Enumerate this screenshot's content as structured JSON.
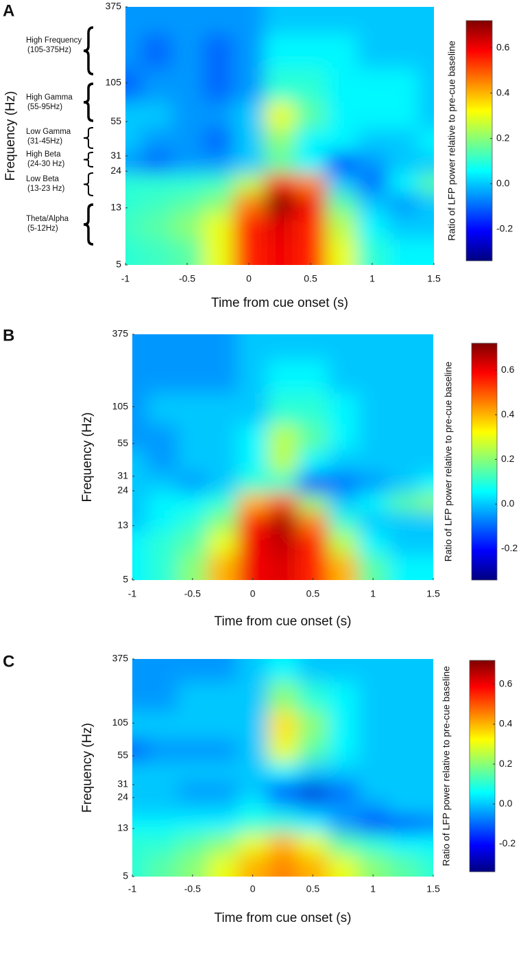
{
  "chart_data": [
    {
      "type": "heatmap",
      "panel_label": "A",
      "xlabel": "Time from cue onset (s)",
      "ylabel": "Frequency (Hz)",
      "colorbar_label": "Ratio of LFP power relative to pre-cue baseline",
      "x": [
        -1,
        -0.75,
        -0.5,
        -0.25,
        0,
        0.25,
        0.5,
        0.75,
        1,
        1.25,
        1.5
      ],
      "y": [
        6,
        10,
        14,
        20,
        27,
        40,
        60,
        100,
        180,
        320
      ],
      "values": [
        [
          0.1,
          0.12,
          0.15,
          0.3,
          0.55,
          0.6,
          0.55,
          0.3,
          0.1,
          0.05,
          0.05
        ],
        [
          0.12,
          0.15,
          0.2,
          0.3,
          0.55,
          0.62,
          0.55,
          0.25,
          0.05,
          0.0,
          0.0
        ],
        [
          0.1,
          0.12,
          0.15,
          0.2,
          0.45,
          0.72,
          0.6,
          0.15,
          0.0,
          -0.05,
          0.0
        ],
        [
          0.1,
          0.1,
          0.1,
          0.12,
          0.25,
          0.55,
          0.45,
          0.0,
          -0.1,
          0.05,
          0.15
        ],
        [
          -0.05,
          -0.1,
          -0.05,
          -0.05,
          0.0,
          0.15,
          0.05,
          -0.15,
          -0.05,
          0.0,
          0.0
        ],
        [
          0.0,
          -0.05,
          -0.05,
          -0.1,
          0.0,
          0.2,
          0.05,
          0.05,
          0.0,
          0.0,
          0.05
        ],
        [
          0.0,
          0.0,
          -0.05,
          -0.05,
          0.0,
          0.3,
          0.15,
          0.05,
          0.05,
          0.05,
          0.0
        ],
        [
          -0.1,
          -0.05,
          -0.05,
          -0.1,
          -0.05,
          0.1,
          0.1,
          0.05,
          0.05,
          0.05,
          0.0
        ],
        [
          -0.05,
          -0.1,
          -0.05,
          -0.1,
          -0.05,
          0.05,
          0.05,
          0.05,
          0.0,
          0.0,
          0.0
        ],
        [
          -0.05,
          -0.05,
          -0.05,
          -0.05,
          -0.05,
          0.0,
          0.0,
          0.0,
          0.0,
          0.0,
          0.0
        ]
      ],
      "xlim": [
        -1,
        1.5
      ],
      "xticks": [
        -1,
        -0.5,
        0,
        0.5,
        1,
        1.5
      ],
      "ylim": [
        5,
        375
      ],
      "ylog": true,
      "yticks": [
        5,
        13,
        24,
        31,
        55,
        105,
        375
      ],
      "clim": [
        -0.34,
        0.72
      ],
      "colormap": "jet",
      "cticks": [
        -0.2,
        {
          "value": 0,
          "label": "0.0"
        },
        0.2,
        0.4,
        0.6
      ],
      "bands": [
        {
          "name": "High Frequency",
          "range": "(105-375Hz)"
        },
        {
          "name": "High Gamma",
          "range": "(55-95Hz)"
        },
        {
          "name": "Low Gamma",
          "range": "(31-45Hz)"
        },
        {
          "name": "High Beta",
          "range": "(24-30 Hz)"
        },
        {
          "name": "Low Beta",
          "range": "(13-23 Hz)"
        },
        {
          "name": "Theta/Alpha",
          "range": "(5-12Hz)"
        }
      ]
    },
    {
      "type": "heatmap",
      "panel_label": "B",
      "xlabel": "Time from cue onset (s)",
      "ylabel": "Frequency (Hz)",
      "colorbar_label": "Ratio of LFP power relative to pre-cue baseline",
      "x": [
        -1,
        -0.75,
        -0.5,
        -0.25,
        0,
        0.25,
        0.5,
        0.75,
        1,
        1.25,
        1.5
      ],
      "y": [
        6,
        10,
        14,
        20,
        27,
        40,
        60,
        100,
        180,
        320
      ],
      "values": [
        [
          0.05,
          0.1,
          0.2,
          0.4,
          0.6,
          0.62,
          0.55,
          0.4,
          0.15,
          0.05,
          0.05
        ],
        [
          0.05,
          0.1,
          0.15,
          0.3,
          0.6,
          0.65,
          0.55,
          0.25,
          0.05,
          0.0,
          0.0
        ],
        [
          0.0,
          0.05,
          0.1,
          0.2,
          0.55,
          0.68,
          0.45,
          0.1,
          0.0,
          0.0,
          0.0
        ],
        [
          0.0,
          0.05,
          0.05,
          0.1,
          0.4,
          0.5,
          0.2,
          0.0,
          0.05,
          0.15,
          0.2
        ],
        [
          0.0,
          0.0,
          -0.05,
          0.0,
          0.1,
          0.1,
          -0.15,
          -0.1,
          -0.05,
          0.0,
          0.05
        ],
        [
          0.0,
          -0.05,
          0.0,
          0.0,
          0.05,
          0.25,
          0.05,
          0.0,
          0.0,
          0.0,
          0.0
        ],
        [
          -0.05,
          -0.05,
          0.0,
          0.0,
          0.05,
          0.25,
          0.15,
          0.05,
          0.0,
          0.0,
          0.0
        ],
        [
          -0.05,
          0.0,
          0.0,
          0.0,
          0.0,
          0.1,
          0.1,
          0.05,
          0.0,
          0.0,
          0.0
        ],
        [
          -0.05,
          -0.05,
          -0.05,
          -0.05,
          0.0,
          0.05,
          0.05,
          0.0,
          0.0,
          0.0,
          0.0
        ],
        [
          -0.05,
          -0.05,
          -0.05,
          -0.05,
          0.0,
          0.0,
          0.0,
          0.0,
          0.0,
          0.0,
          0.0
        ]
      ],
      "xlim": [
        -1,
        1.5
      ],
      "xticks": [
        -1,
        -0.5,
        0,
        0.5,
        1,
        1.5
      ],
      "ylim": [
        5,
        375
      ],
      "ylog": true,
      "yticks": [
        5,
        13,
        24,
        31,
        55,
        105,
        375
      ],
      "clim": [
        -0.34,
        0.72
      ],
      "colormap": "jet",
      "cticks": [
        -0.2,
        {
          "value": 0,
          "label": "0.0"
        },
        0.2,
        0.4,
        0.6
      ]
    },
    {
      "type": "heatmap",
      "panel_label": "C",
      "xlabel": "Time from cue onset (s)",
      "ylabel": "Frequency (Hz)",
      "colorbar_label": "Ratio of LFP power relative to pre-cue baseline",
      "x": [
        -1,
        -0.75,
        -0.5,
        -0.25,
        0,
        0.25,
        0.5,
        0.75,
        1,
        1.25,
        1.5
      ],
      "y": [
        6,
        10,
        14,
        20,
        27,
        40,
        60,
        100,
        180,
        320
      ],
      "values": [
        [
          0.1,
          0.15,
          0.2,
          0.3,
          0.4,
          0.45,
          0.4,
          0.3,
          0.2,
          0.15,
          0.1
        ],
        [
          0.1,
          0.1,
          0.15,
          0.2,
          0.3,
          0.4,
          0.3,
          0.15,
          0.1,
          0.05,
          0.05
        ],
        [
          0.05,
          0.05,
          0.05,
          0.05,
          0.1,
          0.1,
          0.05,
          -0.05,
          -0.15,
          -0.15,
          -0.1
        ],
        [
          0.0,
          0.0,
          0.0,
          0.0,
          0.05,
          0.0,
          -0.05,
          -0.05,
          -0.05,
          0.0,
          0.0
        ],
        [
          0.0,
          0.0,
          -0.05,
          -0.05,
          0.0,
          -0.2,
          -0.25,
          -0.1,
          0.0,
          0.0,
          0.0
        ],
        [
          0.0,
          0.0,
          0.0,
          0.0,
          0.0,
          0.05,
          0.0,
          0.0,
          0.0,
          0.0,
          0.0
        ],
        [
          -0.1,
          -0.05,
          -0.05,
          -0.05,
          0.0,
          0.3,
          0.15,
          0.05,
          0.0,
          0.0,
          0.0
        ],
        [
          0.0,
          0.0,
          0.0,
          0.0,
          0.0,
          0.35,
          0.2,
          0.05,
          0.0,
          0.0,
          0.0
        ],
        [
          -0.05,
          -0.05,
          0.0,
          0.0,
          0.0,
          0.2,
          0.1,
          0.05,
          0.0,
          0.0,
          0.0
        ],
        [
          -0.05,
          -0.05,
          -0.05,
          -0.05,
          0.0,
          0.05,
          0.0,
          0.0,
          0.0,
          0.0,
          0.0
        ]
      ],
      "xlim": [
        -1,
        1.5
      ],
      "xticks": [
        -1,
        -0.5,
        0,
        0.5,
        1,
        1.5
      ],
      "ylim": [
        5,
        375
      ],
      "ylog": true,
      "yticks": [
        5,
        13,
        24,
        31,
        55,
        105,
        375
      ],
      "clim": [
        -0.34,
        0.72
      ],
      "colormap": "jet",
      "cticks": [
        -0.2,
        {
          "value": 0,
          "label": "0.0"
        },
        0.2,
        0.4,
        0.6
      ]
    }
  ]
}
